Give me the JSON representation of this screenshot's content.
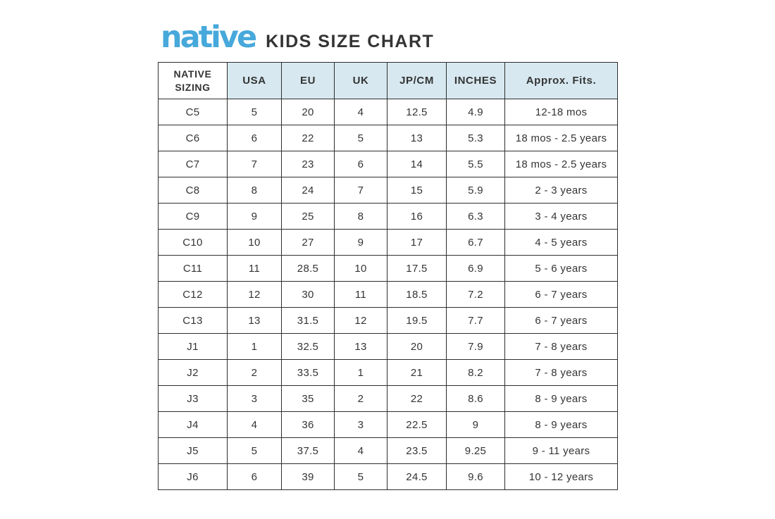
{
  "header": {
    "logo_text": "native",
    "title": "KIDS SIZE CHART"
  },
  "colors": {
    "logo_blue": "#47a8db",
    "header_bg": "#d7e8f0",
    "border": "#2e2e2e",
    "text": "#343434"
  },
  "table": {
    "columns": [
      "NATIVE SIZING",
      "USA",
      "EU",
      "UK",
      "JP/CM",
      "INCHES",
      "Approx. Fits."
    ],
    "column_keys": [
      "native-sizing",
      "usa",
      "eu",
      "uk",
      "jp-cm",
      "inches",
      "approx-fits"
    ],
    "rows": [
      [
        "C5",
        "5",
        "20",
        "4",
        "12.5",
        "4.9",
        "12-18 mos"
      ],
      [
        "C6",
        "6",
        "22",
        "5",
        "13",
        "5.3",
        "18 mos - 2.5 years"
      ],
      [
        "C7",
        "7",
        "23",
        "6",
        "14",
        "5.5",
        "18 mos - 2.5 years"
      ],
      [
        "C8",
        "8",
        "24",
        "7",
        "15",
        "5.9",
        "2 - 3 years"
      ],
      [
        "C9",
        "9",
        "25",
        "8",
        "16",
        "6.3",
        "3 - 4 years"
      ],
      [
        "C10",
        "10",
        "27",
        "9",
        "17",
        "6.7",
        "4 - 5 years"
      ],
      [
        "C11",
        "11",
        "28.5",
        "10",
        "17.5",
        "6.9",
        "5 - 6 years"
      ],
      [
        "C12",
        "12",
        "30",
        "11",
        "18.5",
        "7.2",
        "6 - 7 years"
      ],
      [
        "C13",
        "13",
        "31.5",
        "12",
        "19.5",
        "7.7",
        "6 - 7 years"
      ],
      [
        "J1",
        "1",
        "32.5",
        "13",
        "20",
        "7.9",
        "7 - 8 years"
      ],
      [
        "J2",
        "2",
        "33.5",
        "1",
        "21",
        "8.2",
        "7 - 8 years"
      ],
      [
        "J3",
        "3",
        "35",
        "2",
        "22",
        "8.6",
        "8 - 9 years"
      ],
      [
        "J4",
        "4",
        "36",
        "3",
        "22.5",
        "9",
        "8 - 9 years"
      ],
      [
        "J5",
        "5",
        "37.5",
        "4",
        "23.5",
        "9.25",
        "9 - 11 years"
      ],
      [
        "J6",
        "6",
        "39",
        "5",
        "24.5",
        "9.6",
        "10 - 12 years"
      ]
    ]
  }
}
